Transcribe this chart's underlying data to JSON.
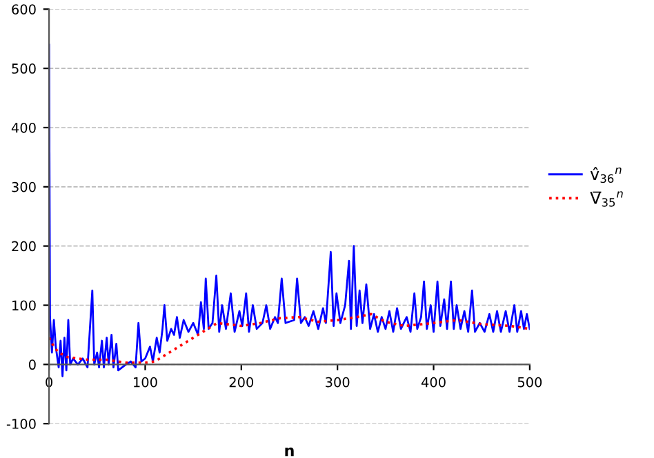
{
  "chart_data": {
    "type": "line",
    "xlabel": "n",
    "xlim": [
      0,
      500
    ],
    "xticks": [
      0,
      100,
      200,
      300,
      400,
      500
    ],
    "ylim": [
      -100,
      600
    ],
    "yticks": [
      -100,
      0,
      100,
      200,
      300,
      400,
      500,
      600
    ],
    "grid": "y",
    "legend": "right",
    "series": [
      {
        "name": "v̂$_{36}$$^{n}$",
        "color": "#0000ff",
        "line_style": "solid",
        "x": [
          0,
          1,
          3,
          5,
          7,
          10,
          12,
          14,
          16,
          18,
          20,
          22,
          25,
          30,
          35,
          40,
          45,
          47,
          50,
          52,
          55,
          57,
          60,
          62,
          65,
          67,
          70,
          72,
          80,
          85,
          90,
          93,
          96,
          100,
          105,
          108,
          112,
          115,
          118,
          120,
          123,
          127,
          130,
          133,
          136,
          140,
          145,
          150,
          155,
          158,
          161,
          163,
          166,
          170,
          174,
          177,
          180,
          184,
          189,
          193,
          198,
          201,
          205,
          208,
          212,
          216,
          222,
          226,
          230,
          235,
          238,
          242,
          246,
          255,
          258,
          262,
          266,
          270,
          275,
          280,
          285,
          288,
          293,
          296,
          299,
          303,
          308,
          312,
          314,
          317,
          320,
          323,
          326,
          330,
          334,
          338,
          342,
          346,
          350,
          354,
          358,
          362,
          366,
          372,
          376,
          380,
          383,
          387,
          390,
          393,
          397,
          400,
          404,
          407,
          411,
          414,
          418,
          421,
          424,
          428,
          432,
          436,
          440,
          443,
          448,
          453,
          458,
          462,
          466,
          470,
          475,
          479,
          484,
          487,
          491,
          494,
          497,
          500
        ],
        "values": [
          540,
          80,
          20,
          75,
          30,
          -5,
          40,
          -20,
          45,
          -10,
          75,
          0,
          10,
          0,
          10,
          -5,
          125,
          0,
          20,
          -5,
          40,
          -5,
          45,
          0,
          50,
          -5,
          35,
          -10,
          0,
          5,
          -5,
          70,
          5,
          10,
          30,
          5,
          45,
          20,
          60,
          100,
          40,
          60,
          50,
          80,
          45,
          75,
          55,
          70,
          50,
          105,
          60,
          145,
          60,
          70,
          150,
          55,
          100,
          60,
          120,
          55,
          90,
          65,
          120,
          55,
          100,
          60,
          70,
          100,
          60,
          80,
          70,
          145,
          70,
          75,
          145,
          70,
          80,
          65,
          90,
          60,
          95,
          70,
          190,
          65,
          120,
          70,
          100,
          175,
          60,
          200,
          65,
          125,
          70,
          135,
          60,
          85,
          55,
          80,
          60,
          90,
          55,
          95,
          60,
          80,
          55,
          120,
          60,
          80,
          140,
          60,
          100,
          55,
          140,
          65,
          110,
          60,
          140,
          60,
          100,
          60,
          90,
          55,
          125,
          55,
          70,
          55,
          85,
          55,
          90,
          55,
          90,
          55,
          100,
          55,
          90,
          60,
          85,
          60
        ]
      },
      {
        "name": "V̅$_{35}$$^{n}$",
        "color": "#ff0000",
        "line_style": "dotted",
        "x": [
          0,
          5,
          10,
          20,
          40,
          60,
          80,
          100,
          110,
          120,
          140,
          160,
          175,
          200,
          220,
          240,
          260,
          280,
          300,
          320,
          335,
          350,
          370,
          400,
          425,
          450,
          480,
          500
        ],
        "values": [
          45,
          30,
          20,
          12,
          8,
          8,
          3,
          3,
          5,
          15,
          35,
          55,
          70,
          65,
          70,
          78,
          80,
          72,
          75,
          80,
          85,
          72,
          65,
          70,
          75,
          68,
          65,
          60
        ]
      }
    ]
  }
}
